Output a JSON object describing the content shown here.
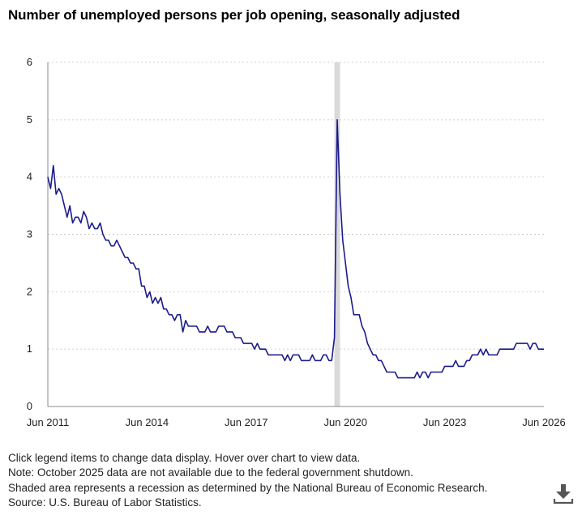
{
  "chart_title": "Number of unemployed persons per job opening, seasonally adjusted",
  "notes": [
    "Click legend items to change data display. Hover over chart to view data.",
    "Note: October 2025 data are not available due to the federal government shutdown.",
    "Shaded area represents a recession as determined by the National Bureau of Economic Research.",
    "Source: U.S. Bureau of Labor Statistics."
  ],
  "download_icon": "download-icon",
  "colors": {
    "line": "#1a1a8c",
    "recession": "#d9d9d9",
    "grid": "#d0d0d0",
    "axis": "#888888"
  },
  "chart_data": {
    "type": "line",
    "title": "Number of unemployed persons per job opening, seasonally adjusted",
    "xlabel": "",
    "ylabel": "",
    "x_start": "2011-06",
    "x_end": "2026-06",
    "xticks": [
      "Jun 2011",
      "Jun 2014",
      "Jun 2017",
      "Jun 2020",
      "Jun 2023",
      "Jun 2026"
    ],
    "ylim": [
      0,
      6
    ],
    "yticks": [
      "0",
      "1",
      "2",
      "3",
      "4",
      "5",
      "6"
    ],
    "grid": "horizontal dotted",
    "legend": "none",
    "recession": {
      "start": "2020-02",
      "end": "2020-04"
    },
    "series": [
      {
        "x": [
          "2011-06",
          "2011-07",
          "2011-08",
          "2011-09",
          "2011-10",
          "2011-11",
          "2011-12",
          "2012-01",
          "2012-02",
          "2012-03",
          "2012-04",
          "2012-05",
          "2012-06",
          "2012-07",
          "2012-08",
          "2012-09",
          "2012-10",
          "2012-11",
          "2012-12",
          "2013-01",
          "2013-02",
          "2013-03",
          "2013-04",
          "2013-05",
          "2013-06",
          "2013-07",
          "2013-08",
          "2013-09",
          "2013-10",
          "2013-11",
          "2013-12",
          "2014-01",
          "2014-02",
          "2014-03",
          "2014-04",
          "2014-05",
          "2014-06",
          "2014-07",
          "2014-08",
          "2014-09",
          "2014-10",
          "2014-11",
          "2014-12",
          "2015-01",
          "2015-02",
          "2015-03",
          "2015-04",
          "2015-05",
          "2015-06",
          "2015-07",
          "2015-08",
          "2015-09",
          "2015-10",
          "2015-11",
          "2015-12",
          "2016-01",
          "2016-02",
          "2016-03",
          "2016-04",
          "2016-05",
          "2016-06",
          "2016-07",
          "2016-08",
          "2016-09",
          "2016-10",
          "2016-11",
          "2016-12",
          "2017-01",
          "2017-02",
          "2017-03",
          "2017-04",
          "2017-05",
          "2017-06",
          "2017-07",
          "2017-08",
          "2017-09",
          "2017-10",
          "2017-11",
          "2017-12",
          "2018-01",
          "2018-02",
          "2018-03",
          "2018-04",
          "2018-05",
          "2018-06",
          "2018-07",
          "2018-08",
          "2018-09",
          "2018-10",
          "2018-11",
          "2018-12",
          "2019-01",
          "2019-02",
          "2019-03",
          "2019-04",
          "2019-05",
          "2019-06",
          "2019-07",
          "2019-08",
          "2019-09",
          "2019-10",
          "2019-11",
          "2019-12",
          "2020-01",
          "2020-02",
          "2020-03",
          "2020-04",
          "2020-05",
          "2020-06",
          "2020-07",
          "2020-08",
          "2020-09",
          "2020-10",
          "2020-11",
          "2020-12",
          "2021-01",
          "2021-02",
          "2021-03",
          "2021-04",
          "2021-05",
          "2021-06",
          "2021-07",
          "2021-08",
          "2021-09",
          "2021-10",
          "2021-11",
          "2021-12",
          "2022-01",
          "2022-02",
          "2022-03",
          "2022-04",
          "2022-05",
          "2022-06",
          "2022-07",
          "2022-08",
          "2022-09",
          "2022-10",
          "2022-11",
          "2022-12",
          "2023-01",
          "2023-02",
          "2023-03",
          "2023-04",
          "2023-05",
          "2023-06",
          "2023-07",
          "2023-08",
          "2023-09",
          "2023-10",
          "2023-11",
          "2023-12",
          "2024-01",
          "2024-02",
          "2024-03",
          "2024-04",
          "2024-05",
          "2024-06",
          "2024-07",
          "2024-08",
          "2024-09",
          "2024-10",
          "2024-11",
          "2024-12",
          "2025-01",
          "2025-02",
          "2025-03",
          "2025-04",
          "2025-05",
          "2025-06",
          "2025-07",
          "2025-08",
          "2025-09",
          "2025-11",
          "2025-12",
          "2026-01",
          "2026-02",
          "2026-03",
          "2026-04",
          "2026-05",
          "2026-06"
        ],
        "values": [
          4.0,
          3.8,
          4.2,
          3.7,
          3.8,
          3.7,
          3.5,
          3.3,
          3.5,
          3.2,
          3.3,
          3.3,
          3.2,
          3.4,
          3.3,
          3.1,
          3.2,
          3.1,
          3.1,
          3.2,
          3.0,
          2.9,
          2.9,
          2.8,
          2.8,
          2.9,
          2.8,
          2.7,
          2.6,
          2.6,
          2.5,
          2.5,
          2.4,
          2.4,
          2.1,
          2.1,
          1.9,
          2.0,
          1.8,
          1.9,
          1.8,
          1.9,
          1.7,
          1.7,
          1.6,
          1.6,
          1.5,
          1.6,
          1.6,
          1.3,
          1.5,
          1.4,
          1.4,
          1.4,
          1.4,
          1.3,
          1.3,
          1.3,
          1.4,
          1.3,
          1.3,
          1.3,
          1.4,
          1.4,
          1.4,
          1.3,
          1.3,
          1.3,
          1.2,
          1.2,
          1.2,
          1.1,
          1.1,
          1.1,
          1.1,
          1.0,
          1.1,
          1.0,
          1.0,
          1.0,
          0.9,
          0.9,
          0.9,
          0.9,
          0.9,
          0.9,
          0.8,
          0.9,
          0.8,
          0.9,
          0.9,
          0.9,
          0.8,
          0.8,
          0.8,
          0.8,
          0.9,
          0.8,
          0.8,
          0.8,
          0.9,
          0.9,
          0.8,
          0.8,
          1.2,
          5.0,
          3.7,
          2.9,
          2.5,
          2.1,
          1.9,
          1.6,
          1.6,
          1.6,
          1.4,
          1.3,
          1.1,
          1.0,
          0.9,
          0.9,
          0.8,
          0.8,
          0.7,
          0.6,
          0.6,
          0.6,
          0.6,
          0.5,
          0.5,
          0.5,
          0.5,
          0.5,
          0.5,
          0.5,
          0.6,
          0.5,
          0.6,
          0.6,
          0.5,
          0.6,
          0.6,
          0.6,
          0.6,
          0.6,
          0.7,
          0.7,
          0.7,
          0.7,
          0.8,
          0.7,
          0.7,
          0.7,
          0.8,
          0.8,
          0.9,
          0.9,
          0.9,
          1.0,
          0.9,
          1.0,
          0.9,
          0.9,
          0.9,
          0.9,
          1.0,
          1.0,
          1.0,
          1.0,
          1.0,
          1.0,
          1.1,
          1.1,
          1.1,
          1.1,
          1.0,
          1.1,
          1.1,
          1.0,
          1.0,
          1.0
        ]
      }
    ]
  }
}
